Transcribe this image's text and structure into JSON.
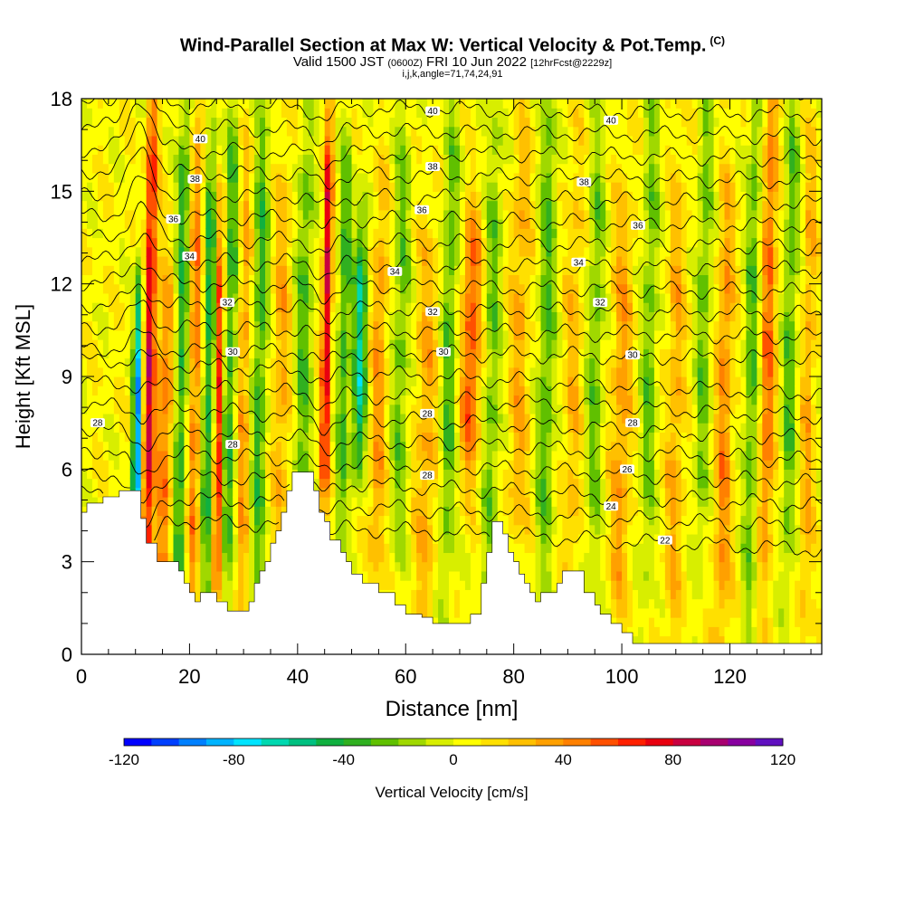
{
  "chart_data": {
    "type": "heatmap",
    "title": "Wind-Parallel Section at Max W: Vertical Velocity & Pot.Temp.",
    "title_mark": "(C)",
    "subtitle": {
      "valid_prefix": "Valid 1500 JST",
      "utc": "(0600Z)",
      "date": "FRI 10 Jun 2022",
      "forecast": "[12hrFcst@2229z]"
    },
    "index_line": "i,j,k,angle=71,74,24,91",
    "xlabel": "Distance [nm]",
    "ylabel": "Height [Kft MSL]",
    "xlim": [
      0,
      137
    ],
    "ylim": [
      0,
      18
    ],
    "x_ticks": [
      0,
      20,
      40,
      60,
      80,
      100,
      120
    ],
    "x_tick_labels": [
      "0",
      "20",
      "40",
      "60",
      "80",
      "100",
      "120"
    ],
    "y_ticks": [
      0,
      3,
      6,
      9,
      12,
      15,
      18
    ],
    "y_tick_labels": [
      "0",
      "3",
      "6",
      "9",
      "12",
      "15",
      "18"
    ],
    "colorbar": {
      "label": "Vertical Velocity [cm/s]",
      "min": -120,
      "max": 120,
      "tick_values": [
        -120,
        -80,
        -40,
        0,
        40,
        80,
        120
      ],
      "tick_labels": [
        "-120",
        "-80",
        "-40",
        "0",
        "40",
        "80",
        "120"
      ],
      "colors": [
        "#0000ff",
        "#0040ff",
        "#0080ff",
        "#00b4ff",
        "#00e4ff",
        "#00d8b0",
        "#00c080",
        "#10b040",
        "#30b020",
        "#60c000",
        "#a0d800",
        "#d8ee00",
        "#ffff00",
        "#ffe000",
        "#ffc000",
        "#ffa000",
        "#ff8000",
        "#ff5000",
        "#ff2000",
        "#e80010",
        "#c80040",
        "#a80070",
        "#8800a0",
        "#6010c0"
      ]
    },
    "theta_contour_labels": [
      {
        "value": "40",
        "x": 22,
        "y": 16.7
      },
      {
        "value": "38",
        "x": 21,
        "y": 15.4
      },
      {
        "value": "36",
        "x": 17,
        "y": 14.1
      },
      {
        "value": "34",
        "x": 20,
        "y": 12.9
      },
      {
        "value": "32",
        "x": 27,
        "y": 11.4
      },
      {
        "value": "30",
        "x": 28,
        "y": 9.8
      },
      {
        "value": "28",
        "x": 3,
        "y": 7.5
      },
      {
        "value": "28",
        "x": 28,
        "y": 6.8
      },
      {
        "value": "40",
        "x": 65,
        "y": 17.6
      },
      {
        "value": "38",
        "x": 65,
        "y": 15.8
      },
      {
        "value": "36",
        "x": 63,
        "y": 14.4
      },
      {
        "value": "34",
        "x": 58,
        "y": 12.4
      },
      {
        "value": "32",
        "x": 65,
        "y": 11.1
      },
      {
        "value": "30",
        "x": 67,
        "y": 9.8
      },
      {
        "value": "28",
        "x": 64,
        "y": 7.8
      },
      {
        "value": "28",
        "x": 64,
        "y": 5.8
      },
      {
        "value": "40",
        "x": 98,
        "y": 17.3
      },
      {
        "value": "38",
        "x": 93,
        "y": 15.3
      },
      {
        "value": "36",
        "x": 103,
        "y": 13.9
      },
      {
        "value": "34",
        "x": 92,
        "y": 12.7
      },
      {
        "value": "32",
        "x": 96,
        "y": 11.4
      },
      {
        "value": "30",
        "x": 102,
        "y": 9.7
      },
      {
        "value": "28",
        "x": 102,
        "y": 7.5
      },
      {
        "value": "26",
        "x": 101,
        "y": 6.0
      },
      {
        "value": "24",
        "x": 98,
        "y": 4.8
      },
      {
        "value": "22",
        "x": 108,
        "y": 3.7
      }
    ],
    "grid": false
  }
}
